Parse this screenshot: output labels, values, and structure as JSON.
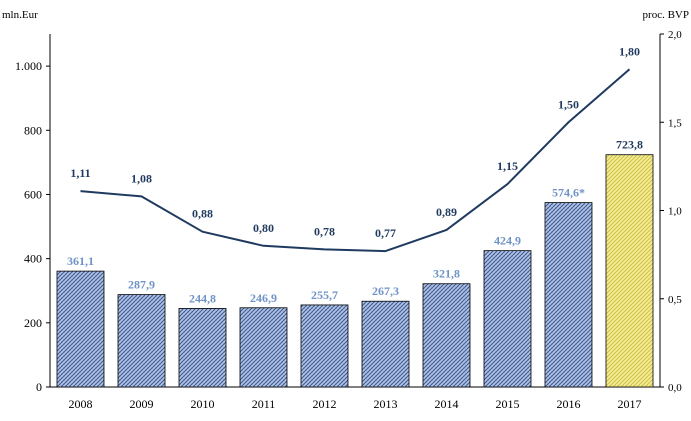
{
  "chart_data": {
    "type": "bar",
    "categories": [
      "2008",
      "2009",
      "2010",
      "2011",
      "2012",
      "2013",
      "2014",
      "2015",
      "2016",
      "2017"
    ],
    "series": [
      {
        "axis": "left",
        "kind": "bar",
        "values": [
          361.1,
          287.9,
          244.8,
          246.9,
          255.7,
          267.3,
          321.8,
          424.9,
          574.6,
          723.8
        ],
        "labels": [
          "361,1",
          "287,9",
          "244,8",
          "246,9",
          "255,7",
          "267,3",
          "321,8",
          "424,9",
          "574,6*",
          "723,8"
        ]
      },
      {
        "axis": "right",
        "kind": "line",
        "values": [
          1.11,
          1.08,
          0.88,
          0.8,
          0.78,
          0.77,
          0.89,
          1.15,
          1.5,
          1.8
        ],
        "labels": [
          "1,11",
          "1,08",
          "0,88",
          "0,80",
          "0,78",
          "0,77",
          "0,89",
          "1,15",
          "1,50",
          "1,80"
        ]
      }
    ],
    "left_axis": {
      "label": "mln.Eur",
      "ylim": [
        0,
        1100
      ],
      "ticks": [
        0,
        200,
        400,
        600,
        800,
        1000
      ],
      "tick_labels": [
        "0",
        "200",
        "400",
        "600",
        "800",
        "1.000"
      ]
    },
    "right_axis": {
      "label": "proc. BVP",
      "ylim": [
        0,
        2.0
      ],
      "ticks": [
        0,
        0.5,
        1.0,
        1.5,
        2.0
      ],
      "tick_labels": [
        "0,0",
        "0,5",
        "1,0",
        "1,5",
        "2,0"
      ]
    },
    "grid": false,
    "colors": {
      "bar_fill": "#aab9d8",
      "bar_pattern": "#2f4f8f",
      "bar_label": "#6f93c6",
      "highlight_fill": "#f2e98a",
      "highlight_pattern": "#c9b93a",
      "highlight_label": "#1f3a5f",
      "line": "#1f3a5f"
    },
    "highlight_index": 9
  }
}
